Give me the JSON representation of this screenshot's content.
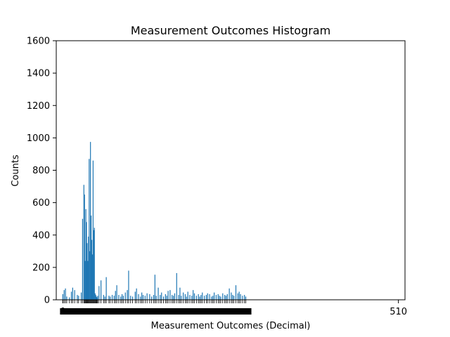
{
  "chart_data": {
    "type": "bar",
    "title": "Measurement Outcomes Histogram",
    "xlabel": "Measurement Outcomes (Decimal)",
    "ylabel": "Counts",
    "ylim": [
      0,
      1600
    ],
    "xlim": [
      -10,
      520
    ],
    "y_ticks": [
      0,
      200,
      400,
      600,
      800,
      1000,
      1200,
      1400,
      1600
    ],
    "x_ticks": [
      0,
      510
    ],
    "grid": false,
    "bar_color": "#1f77b4",
    "x": [
      0,
      2,
      4,
      6,
      10,
      13,
      15,
      18,
      22,
      24,
      28,
      30,
      32,
      33,
      34,
      35,
      36,
      37,
      38,
      39,
      40,
      41,
      42,
      43,
      44,
      45,
      46,
      47,
      48,
      49,
      50,
      51,
      52,
      53,
      55,
      58,
      62,
      64,
      66,
      70,
      72,
      75,
      78,
      80,
      82,
      85,
      88,
      90,
      92,
      95,
      98,
      100,
      103,
      106,
      110,
      112,
      115,
      118,
      120,
      122,
      125,
      128,
      132,
      135,
      138,
      140,
      142,
      145,
      148,
      150,
      153,
      156,
      158,
      160,
      163,
      166,
      168,
      170,
      173,
      176,
      178,
      180,
      183,
      186,
      188,
      190,
      193,
      196,
      198,
      200,
      203,
      206,
      208,
      210,
      212,
      215,
      218,
      220,
      223,
      226,
      228,
      230,
      233,
      236,
      238,
      240,
      243,
      246,
      248,
      250,
      253,
      256,
      258,
      260,
      263,
      266,
      268,
      270,
      273,
      276,
      278
    ],
    "values": [
      35,
      60,
      70,
      20,
      15,
      50,
      75,
      60,
      30,
      25,
      45,
      500,
      710,
      650,
      240,
      560,
      480,
      350,
      240,
      390,
      870,
      300,
      975,
      520,
      370,
      280,
      860,
      430,
      445,
      40,
      30,
      20,
      15,
      25,
      85,
      120,
      30,
      20,
      140,
      25,
      20,
      30,
      25,
      55,
      90,
      30,
      20,
      35,
      25,
      45,
      60,
      180,
      25,
      20,
      50,
      70,
      35,
      20,
      45,
      30,
      25,
      40,
      35,
      20,
      30,
      155,
      25,
      75,
      30,
      45,
      20,
      35,
      25,
      55,
      60,
      30,
      25,
      40,
      165,
      30,
      75,
      25,
      45,
      35,
      20,
      50,
      30,
      25,
      60,
      40,
      25,
      35,
      20,
      30,
      45,
      25,
      30,
      40,
      35,
      20,
      25,
      45,
      30,
      35,
      25,
      20,
      40,
      30,
      25,
      35,
      70,
      45,
      30,
      25,
      90,
      40,
      50,
      35,
      25,
      30,
      20
    ]
  }
}
